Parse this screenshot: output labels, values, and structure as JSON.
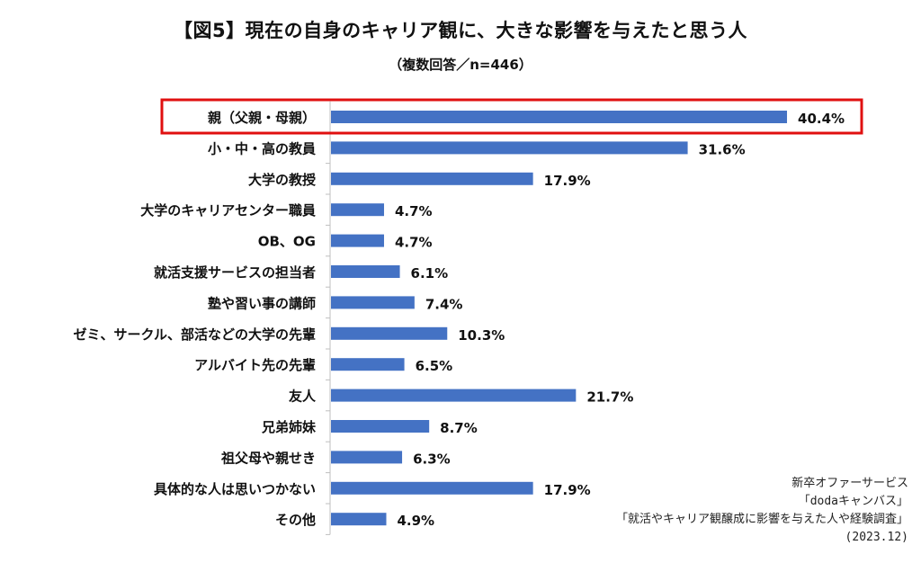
{
  "header": {
    "title": "【図5】現在の自身のキャリア観に、大きな影響を与えたと思う人",
    "subtitle": "（複数回答／n=446）"
  },
  "chart_data": {
    "type": "bar",
    "orientation": "horizontal",
    "title": "【図5】現在の自身のキャリア観に、大きな影響を与えたと思う人",
    "subtitle": "（複数回答／n=446）",
    "categories": [
      "親（父親・母親）",
      "小・中・高の教員",
      "大学の教授",
      "大学のキャリアセンター職員",
      "OB、OG",
      "就活支援サービスの担当者",
      "塾や習い事の講師",
      "ゼミ、サークル、部活などの大学の先輩",
      "アルバイト先の先輩",
      "友人",
      "兄弟姉妹",
      "祖父母や親せき",
      "具体的な人は思いつかない",
      "その他"
    ],
    "values": [
      40.4,
      31.6,
      17.9,
      4.7,
      4.7,
      6.1,
      7.4,
      10.3,
      6.5,
      21.7,
      8.7,
      6.3,
      17.9,
      4.9
    ],
    "value_labels": [
      "40.4%",
      "31.6%",
      "17.9%",
      "4.7%",
      "4.7%",
      "6.1%",
      "7.4%",
      "10.3%",
      "6.5%",
      "21.7%",
      "8.7%",
      "6.3%",
      "17.9%",
      "4.9%"
    ],
    "highlighted_category": "親（父親・母親）",
    "bar_color": "#4472C4",
    "highlight_color": "#E01010",
    "axis_color": "#BFBFBF",
    "grid": false,
    "legend": "none"
  },
  "source": {
    "line1": "新卒オファーサービス",
    "line2": "「dodaキャンバス」",
    "line3": "「就活やキャリア観醸成に影響を与えた人や経験調査」",
    "line4": "(2023.12)"
  }
}
